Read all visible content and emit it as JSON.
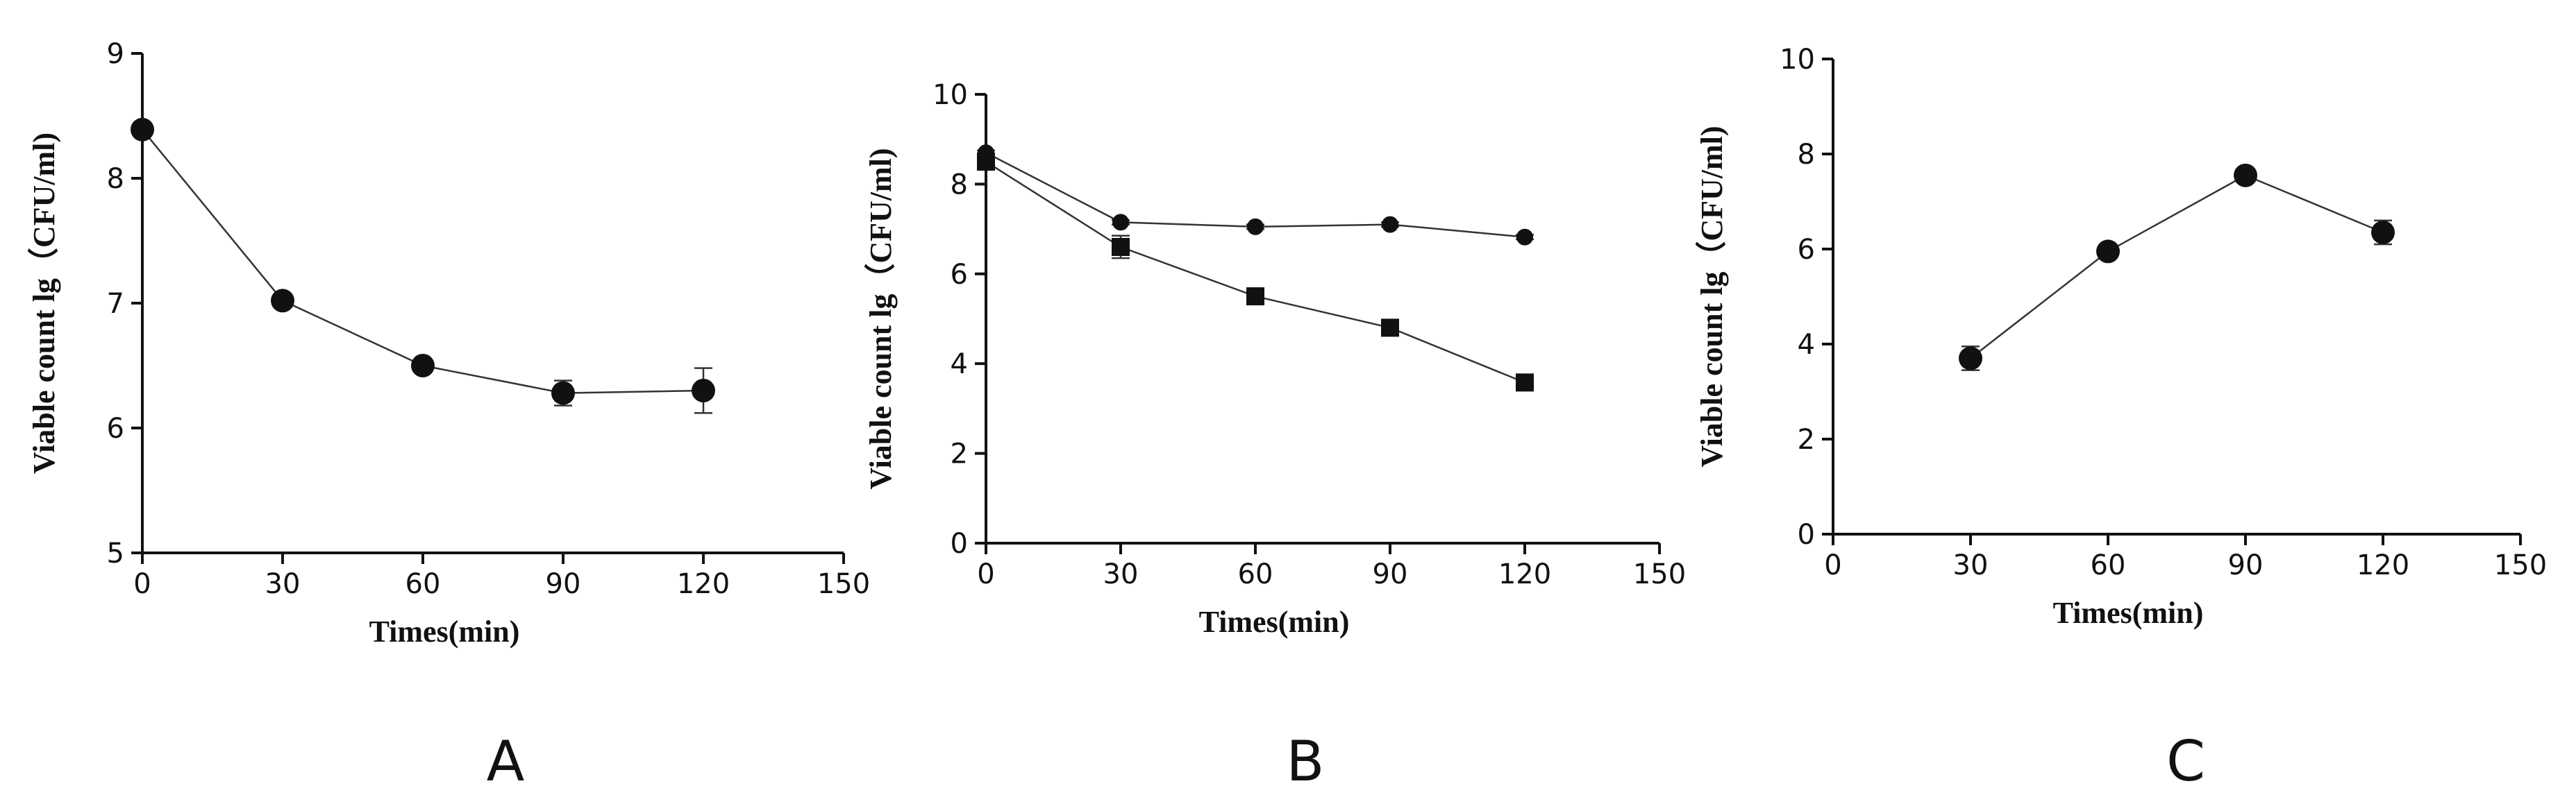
{
  "chart_data": [
    {
      "panel": "A",
      "type": "line",
      "xlabel": "Times(min)",
      "ylabel": "Viable count lg（CFU/ml)",
      "xlim": [
        0,
        150
      ],
      "ylim": [
        5,
        9
      ],
      "xticks": [
        0,
        30,
        60,
        90,
        120,
        150
      ],
      "yticks": [
        5,
        6,
        7,
        8,
        9
      ],
      "grid": false,
      "series": [
        {
          "marker": "circle",
          "x": [
            0,
            30,
            60,
            90,
            120
          ],
          "y": [
            8.39,
            7.02,
            6.5,
            6.28,
            6.3
          ],
          "err": [
            0.03,
            0.04,
            0.04,
            0.1,
            0.18
          ]
        }
      ]
    },
    {
      "panel": "B",
      "type": "line",
      "xlabel": "Times(min)",
      "ylabel": "Viable count lg（CFU/ml)",
      "xlim": [
        0,
        150
      ],
      "ylim": [
        0,
        10
      ],
      "xticks": [
        0,
        30,
        60,
        90,
        120,
        150
      ],
      "yticks": [
        0,
        2,
        4,
        6,
        8,
        10
      ],
      "grid": false,
      "series": [
        {
          "marker": "circle",
          "x": [
            0,
            30,
            60,
            90,
            120
          ],
          "y": [
            8.7,
            7.15,
            7.05,
            7.1,
            6.82
          ],
          "err": [
            0.05,
            0.05,
            0.05,
            0.05,
            0.05
          ]
        },
        {
          "marker": "square",
          "x": [
            0,
            30,
            60,
            90,
            120
          ],
          "y": [
            8.5,
            6.6,
            5.5,
            4.8,
            3.58
          ],
          "err": [
            0.15,
            0.25,
            0.08,
            0.06,
            0.1
          ]
        }
      ]
    },
    {
      "panel": "C",
      "type": "line",
      "xlabel": "Times(min)",
      "ylabel": "Viable count lg（CFU/ml)",
      "xlim": [
        0,
        150
      ],
      "ylim": [
        0,
        10
      ],
      "xticks": [
        0,
        30,
        60,
        90,
        120,
        150
      ],
      "yticks": [
        0,
        2,
        4,
        6,
        8,
        10
      ],
      "grid": false,
      "series": [
        {
          "marker": "circle",
          "x": [
            30,
            60,
            90,
            120
          ],
          "y": [
            3.7,
            5.95,
            7.55,
            6.35
          ],
          "err": [
            0.25,
            0.05,
            0.05,
            0.25
          ]
        }
      ]
    }
  ]
}
